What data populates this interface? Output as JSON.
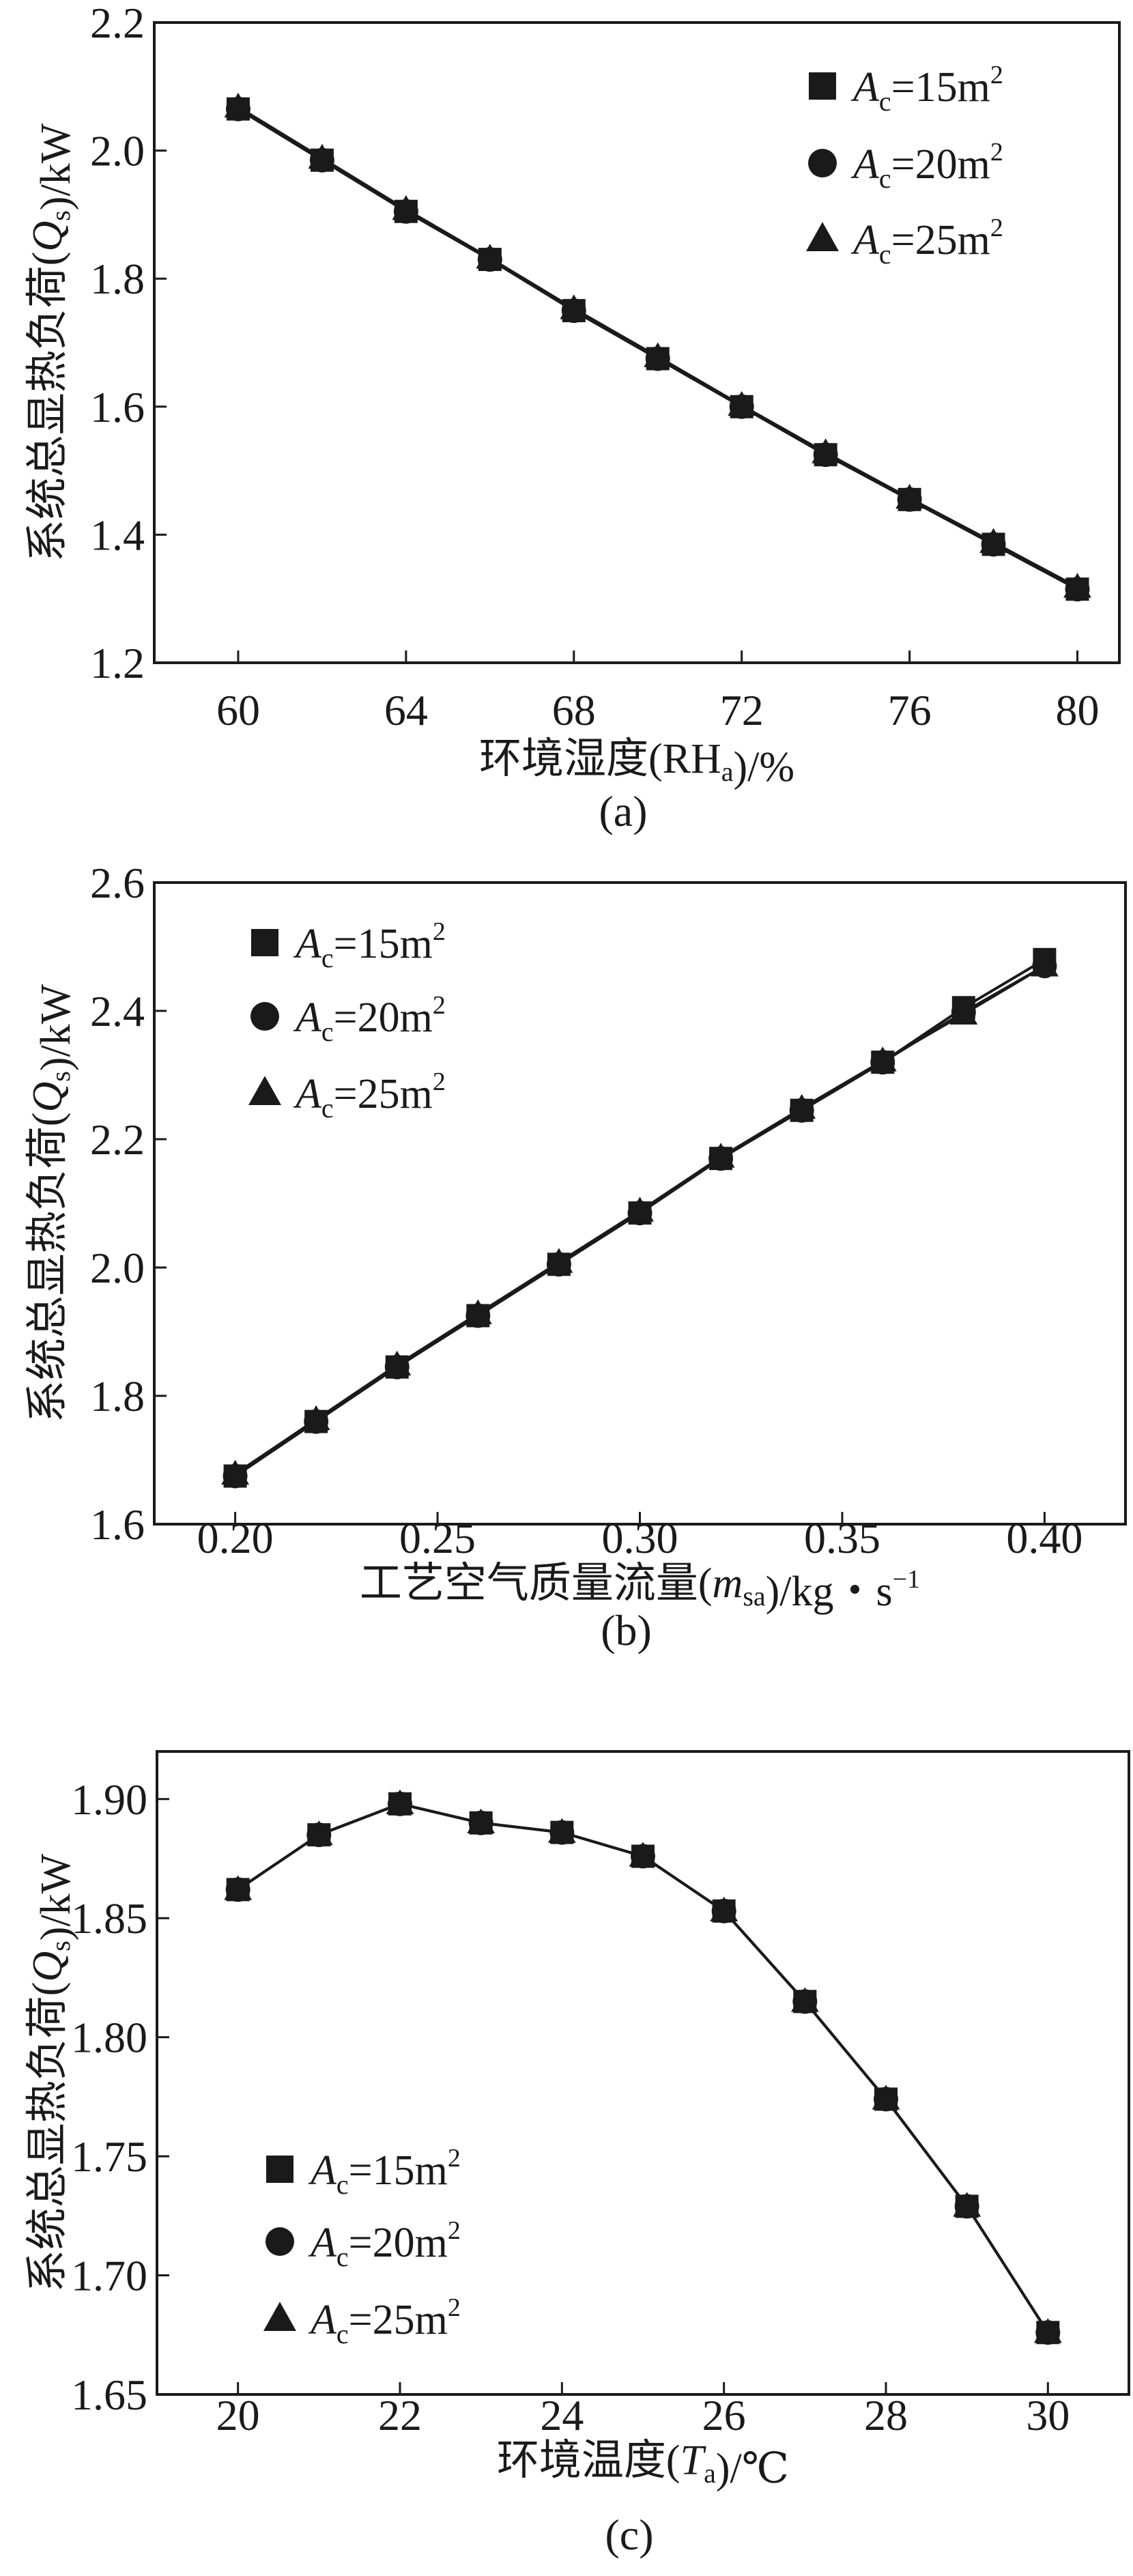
{
  "chart_data": [
    {
      "type": "line",
      "caption": "(a)",
      "xlabel": {
        "pre": "环境湿度(RH",
        "sub": "a",
        "post": ")/%",
        "italic": false
      },
      "ylabel": {
        "pre": "系统总显热负荷(",
        "var": "Q",
        "sub": "s",
        "post": ")/kW"
      },
      "xlim": [
        58,
        81
      ],
      "ylim": [
        1.2,
        2.2
      ],
      "xticks": [
        60,
        64,
        68,
        72,
        76,
        80
      ],
      "xtick_labels": [
        "60",
        "64",
        "68",
        "72",
        "76",
        "80"
      ],
      "yticks": [
        1.2,
        1.4,
        1.6,
        1.8,
        2.0,
        2.2
      ],
      "ytick_labels": [
        "1.2",
        "1.4",
        "1.6",
        "1.8",
        "2.0",
        "2.2"
      ],
      "legend_position": "top-right",
      "grid": false,
      "x": [
        60,
        62,
        64,
        66,
        68,
        70,
        72,
        74,
        76,
        78,
        80
      ],
      "series": [
        {
          "name": "Ac=15m2",
          "marker": "square",
          "values": [
            2.065,
            1.985,
            1.905,
            1.83,
            1.75,
            1.675,
            1.6,
            1.525,
            1.455,
            1.385,
            1.315
          ]
        },
        {
          "name": "Ac=20m2",
          "marker": "circle",
          "values": [
            2.065,
            1.985,
            1.905,
            1.83,
            1.75,
            1.675,
            1.6,
            1.525,
            1.455,
            1.385,
            1.315
          ]
        },
        {
          "name": "Ac=25m2",
          "marker": "triangle",
          "values": [
            2.068,
            1.988,
            1.908,
            1.832,
            1.753,
            1.678,
            1.602,
            1.528,
            1.457,
            1.388,
            1.318
          ]
        }
      ]
    },
    {
      "type": "line",
      "caption": "(b)",
      "xlabel": {
        "pre": "工艺空气质量流量(",
        "var": "m",
        "sub": "sa",
        "post": ")/kg・s",
        "sup": "−1"
      },
      "ylabel": {
        "pre": "系统总显热负荷(",
        "var": "Q",
        "sub": "s",
        "post": ")/kW"
      },
      "xlim": [
        0.18,
        0.42
      ],
      "ylim": [
        1.6,
        2.6
      ],
      "xticks": [
        0.2,
        0.25,
        0.3,
        0.35,
        0.4
      ],
      "xtick_labels": [
        "0.20",
        "0.25",
        "0.30",
        "0.35",
        "0.40"
      ],
      "yticks": [
        1.6,
        1.8,
        2.0,
        2.2,
        2.4,
        2.6
      ],
      "ytick_labels": [
        "1.6",
        "1.8",
        "2.0",
        "2.2",
        "2.4",
        "2.6"
      ],
      "legend_position": "top-left",
      "grid": false,
      "x": [
        0.2,
        0.22,
        0.24,
        0.26,
        0.28,
        0.3,
        0.32,
        0.34,
        0.36,
        0.38,
        0.4
      ],
      "series": [
        {
          "name": "Ac=15m2",
          "marker": "square",
          "values": [
            1.675,
            1.76,
            1.845,
            1.925,
            2.005,
            2.085,
            2.17,
            2.245,
            2.32,
            2.405,
            2.48
          ]
        },
        {
          "name": "Ac=20m2",
          "marker": "circle",
          "values": [
            1.675,
            1.76,
            1.845,
            1.925,
            2.005,
            2.085,
            2.17,
            2.245,
            2.32,
            2.398,
            2.47
          ]
        },
        {
          "name": "Ac=25m2",
          "marker": "triangle",
          "values": [
            1.678,
            1.763,
            1.848,
            1.928,
            2.008,
            2.088,
            2.172,
            2.248,
            2.322,
            2.395,
            2.47
          ]
        }
      ]
    },
    {
      "type": "line",
      "caption": "(c)",
      "xlabel": {
        "pre": "环境温度(",
        "var": "T",
        "sub": "a",
        "post": ")/℃"
      },
      "ylabel": {
        "pre": "系统总显热负荷(",
        "var": "Q",
        "sub": "s",
        "post": ")/kW"
      },
      "xlim": [
        19,
        31
      ],
      "ylim": [
        1.65,
        1.92
      ],
      "xticks": [
        20,
        22,
        24,
        26,
        28,
        30
      ],
      "xtick_labels": [
        "20",
        "22",
        "24",
        "26",
        "28",
        "30"
      ],
      "yticks": [
        1.65,
        1.7,
        1.75,
        1.8,
        1.85,
        1.9
      ],
      "ytick_labels": [
        "1.65",
        "1.70",
        "1.75",
        "1.80",
        "1.85",
        "1.90"
      ],
      "legend_position": "bottom-left",
      "grid": false,
      "x": [
        20,
        21,
        22,
        23,
        24,
        25,
        26,
        27,
        28,
        29,
        30
      ],
      "series": [
        {
          "name": "Ac=15m2",
          "marker": "square",
          "values": [
            1.862,
            1.885,
            1.898,
            1.89,
            1.886,
            1.876,
            1.853,
            1.815,
            1.774,
            1.729,
            1.676
          ]
        },
        {
          "name": "Ac=20m2",
          "marker": "circle",
          "values": [
            1.862,
            1.885,
            1.898,
            1.89,
            1.886,
            1.876,
            1.853,
            1.815,
            1.774,
            1.729,
            1.676
          ]
        },
        {
          "name": "Ac=25m2",
          "marker": "triangle",
          "values": [
            1.862,
            1.885,
            1.898,
            1.89,
            1.886,
            1.876,
            1.853,
            1.815,
            1.774,
            1.729,
            1.676
          ]
        }
      ]
    }
  ],
  "legend": [
    {
      "var": "A",
      "sub": "c",
      "text": "=15m",
      "sup": "2"
    },
    {
      "var": "A",
      "sub": "c",
      "text": "=20m",
      "sup": "2"
    },
    {
      "var": "A",
      "sub": "c",
      "text": "=25m",
      "sup": "2"
    }
  ],
  "colors": {
    "line": "#1a1a1a",
    "marker": "#1a1a1a"
  }
}
